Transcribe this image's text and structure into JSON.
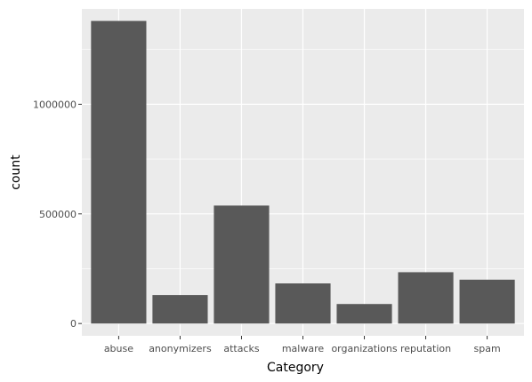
{
  "chart_data": {
    "type": "bar",
    "title": "",
    "xlabel": "Category",
    "ylabel": "count",
    "categories": [
      "abuse",
      "anonymizers",
      "attacks",
      "malware",
      "organizations",
      "reputation",
      "spam"
    ],
    "values": [
      1380000,
      130000,
      538000,
      183000,
      89000,
      234000,
      200000
    ],
    "ylim": [
      -56000,
      1435000
    ],
    "yticks": [
      0,
      500000,
      1000000
    ],
    "ytick_labels": [
      "0",
      "500000",
      "1000000"
    ],
    "grid": true,
    "legend": "none",
    "colors": {
      "bar": "#595959",
      "panel": "#ebebeb",
      "gridline": "#ffffff",
      "tick_text": "#4d4d4d",
      "tick_mark": "#333333"
    }
  }
}
